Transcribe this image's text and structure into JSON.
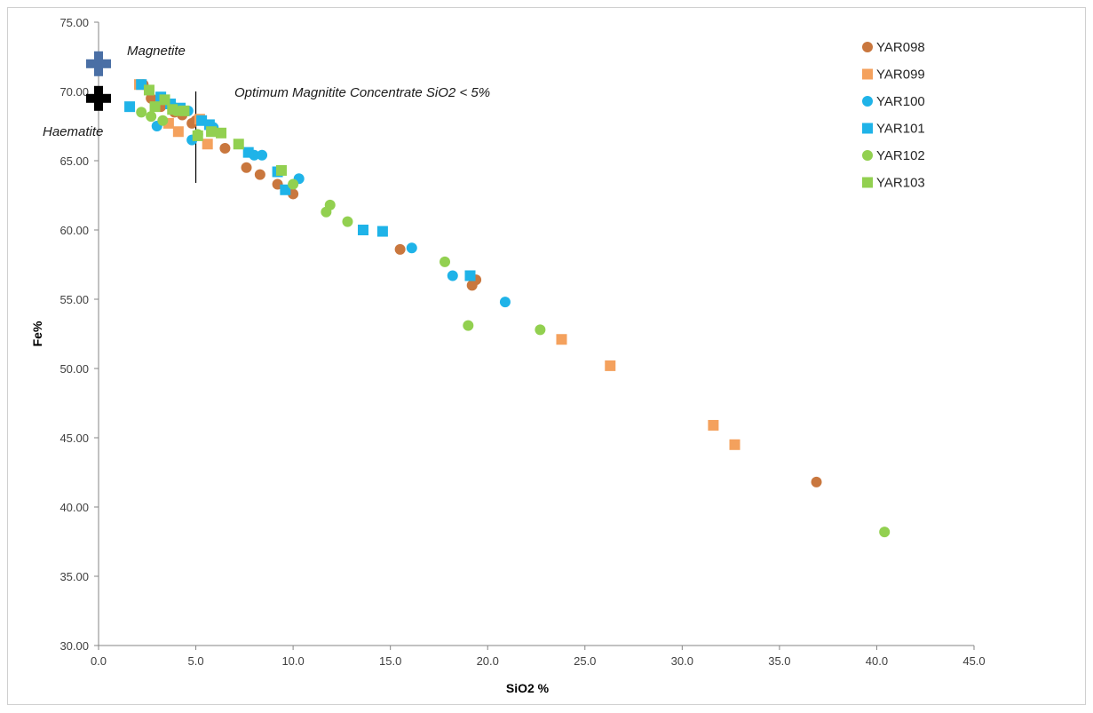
{
  "chart_data": {
    "type": "scatter",
    "title": "",
    "xlabel": "SiO2 %",
    "ylabel": "Fe%",
    "xlim": [
      0,
      45
    ],
    "ylim": [
      30,
      75
    ],
    "x_ticks": [
      "0.0",
      "5.0",
      "10.0",
      "15.0",
      "20.0",
      "25.0",
      "30.0",
      "35.0",
      "40.0",
      "45.0"
    ],
    "y_ticks": [
      "30.00",
      "35.00",
      "40.00",
      "45.00",
      "50.00",
      "55.00",
      "60.00",
      "65.00",
      "70.00",
      "75.00"
    ],
    "grid": false,
    "legend_position": "top-right",
    "series": [
      {
        "name": "YAR098",
        "marker": "circle",
        "color": "#c9773e",
        "points": [
          [
            2.3,
            70.5
          ],
          [
            2.7,
            69.5
          ],
          [
            3.2,
            68.9
          ],
          [
            3.9,
            68.5
          ],
          [
            4.3,
            68.3
          ],
          [
            4.8,
            67.7
          ],
          [
            5.0,
            67.9
          ],
          [
            6.5,
            65.9
          ],
          [
            7.6,
            64.5
          ],
          [
            8.3,
            64.0
          ],
          [
            9.2,
            63.3
          ],
          [
            10.0,
            62.6
          ],
          [
            15.5,
            58.6
          ],
          [
            19.2,
            56.0
          ],
          [
            19.4,
            56.4
          ],
          [
            36.9,
            41.8
          ]
        ]
      },
      {
        "name": "YAR099",
        "marker": "square",
        "color": "#f4a15d",
        "points": [
          [
            2.1,
            70.5
          ],
          [
            3.6,
            67.7
          ],
          [
            4.1,
            67.1
          ],
          [
            5.2,
            68.0
          ],
          [
            5.6,
            66.2
          ],
          [
            23.8,
            52.1
          ],
          [
            26.3,
            50.2
          ],
          [
            31.6,
            45.9
          ],
          [
            32.7,
            44.5
          ]
        ]
      },
      {
        "name": "YAR100",
        "marker": "circle",
        "color": "#1fb3e8",
        "points": [
          [
            3.0,
            67.5
          ],
          [
            3.8,
            68.9
          ],
          [
            4.6,
            68.6
          ],
          [
            4.8,
            66.5
          ],
          [
            5.9,
            67.4
          ],
          [
            8.0,
            65.4
          ],
          [
            8.4,
            65.4
          ],
          [
            10.3,
            63.7
          ],
          [
            16.1,
            58.7
          ],
          [
            18.2,
            56.7
          ],
          [
            20.9,
            54.8
          ]
        ]
      },
      {
        "name": "YAR101",
        "marker": "square",
        "color": "#1fb3e8",
        "points": [
          [
            1.6,
            68.9
          ],
          [
            2.2,
            70.5
          ],
          [
            3.2,
            69.6
          ],
          [
            3.7,
            69.1
          ],
          [
            4.2,
            68.8
          ],
          [
            5.3,
            67.9
          ],
          [
            5.7,
            67.6
          ],
          [
            7.7,
            65.6
          ],
          [
            9.2,
            64.2
          ],
          [
            9.6,
            62.9
          ],
          [
            13.6,
            60.0
          ],
          [
            14.6,
            59.9
          ],
          [
            19.1,
            56.7
          ]
        ]
      },
      {
        "name": "YAR102",
        "marker": "circle",
        "color": "#92d050",
        "points": [
          [
            2.2,
            68.5
          ],
          [
            2.7,
            68.2
          ],
          [
            3.3,
            67.9
          ],
          [
            4.0,
            68.6
          ],
          [
            5.1,
            66.9
          ],
          [
            10.0,
            63.3
          ],
          [
            11.7,
            61.3
          ],
          [
            11.9,
            61.8
          ],
          [
            12.8,
            60.6
          ],
          [
            17.8,
            57.7
          ],
          [
            19.0,
            53.1
          ],
          [
            22.7,
            52.8
          ],
          [
            40.4,
            38.2
          ]
        ]
      },
      {
        "name": "YAR103",
        "marker": "square",
        "color": "#92d050",
        "points": [
          [
            2.6,
            70.1
          ],
          [
            2.9,
            68.9
          ],
          [
            3.4,
            69.4
          ],
          [
            3.8,
            68.7
          ],
          [
            4.4,
            68.6
          ],
          [
            5.1,
            66.8
          ],
          [
            5.8,
            67.1
          ],
          [
            6.3,
            67.0
          ],
          [
            7.2,
            66.2
          ],
          [
            9.4,
            64.3
          ]
        ]
      }
    ],
    "reference_points": [
      {
        "label": "Magnetite",
        "x": 0,
        "y": 72.0,
        "color": "#4a6fa5"
      },
      {
        "label": "Haematite",
        "x": 0,
        "y": 69.5,
        "color": "#000000"
      }
    ],
    "reference_line": {
      "x": 5.0,
      "y_from": 63.4,
      "y_to": 70.0,
      "label": "Optimum Magnitite Concentrate SiO2 < 5%"
    }
  }
}
